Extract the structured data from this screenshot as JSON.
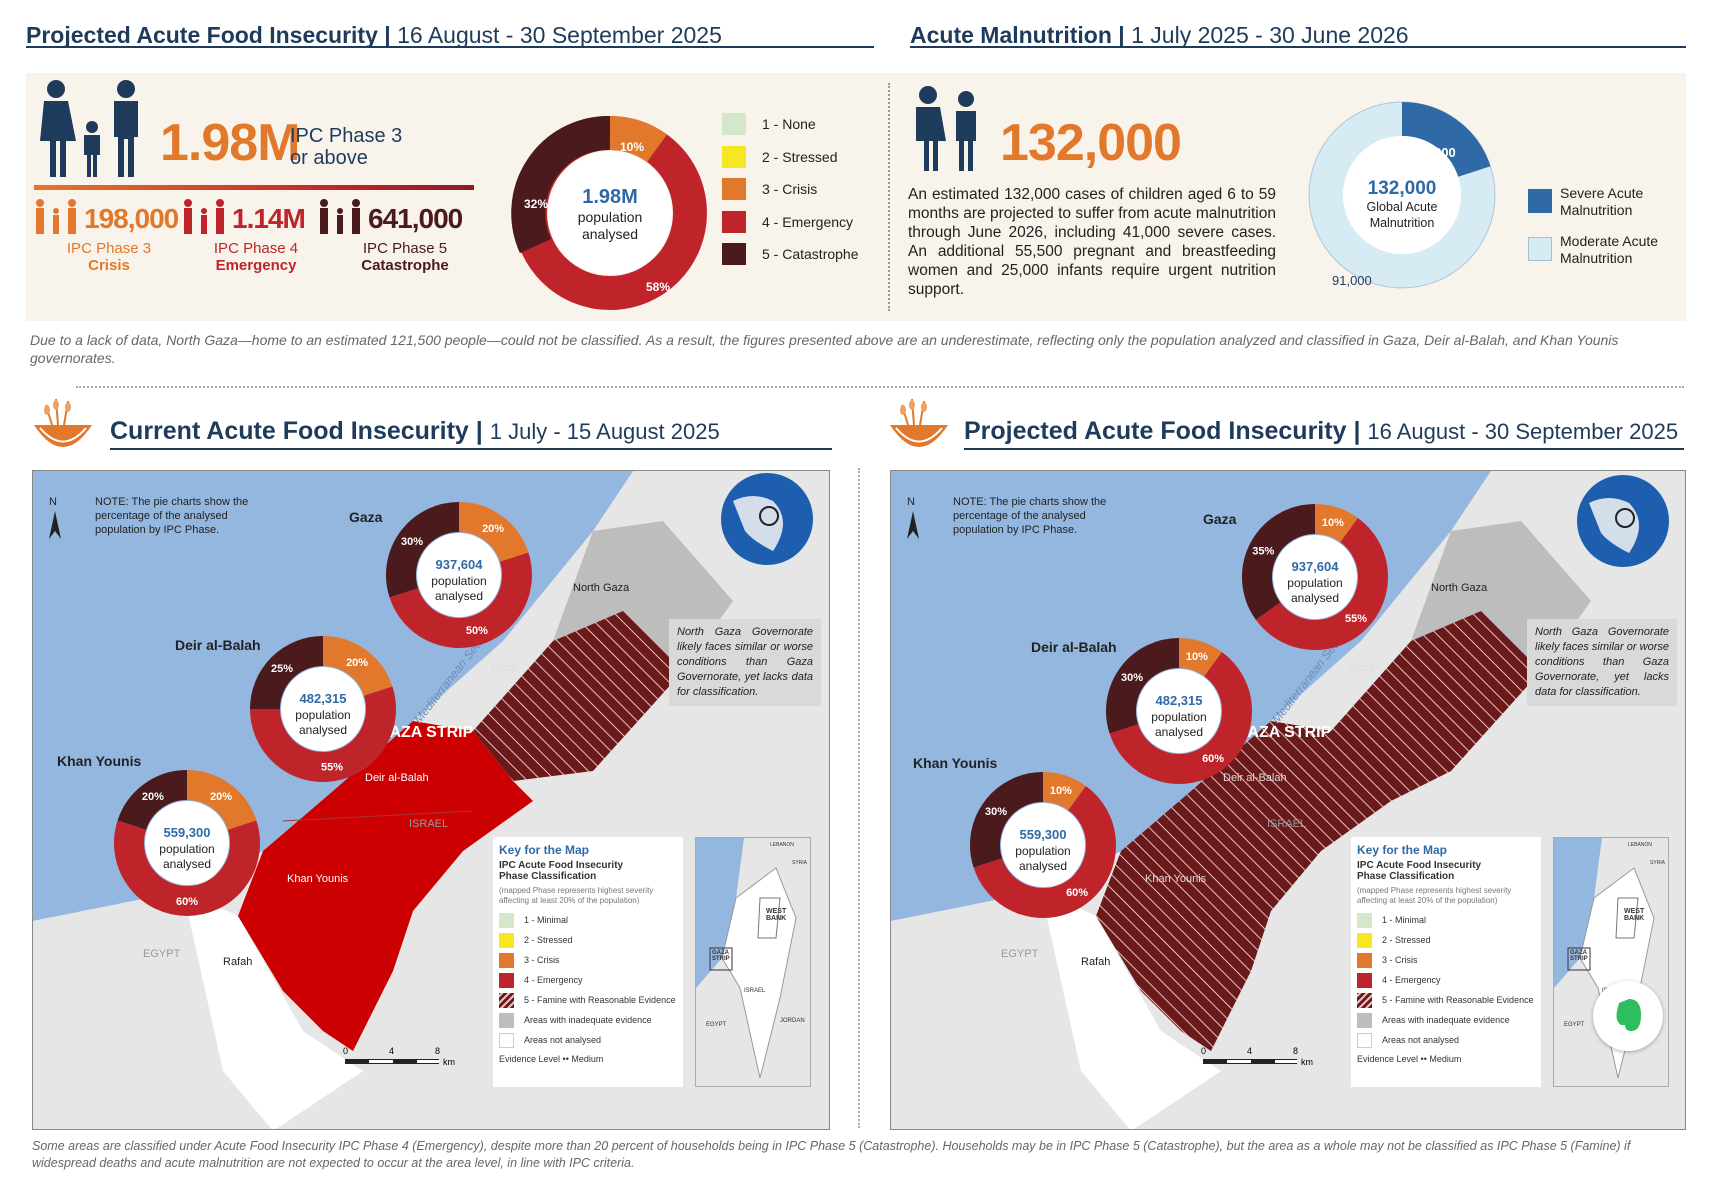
{
  "top_left_header": {
    "title": "Projected Acute Food Insecurity",
    "sep": "|",
    "period": "16 August - 30 September 2025"
  },
  "top_right_header": {
    "title": "Acute Malnutrition",
    "sep": "|",
    "period": "1 July 2025 - 30 June 2026"
  },
  "food": {
    "total": "1.98M",
    "total_label_1": "IPC Phase 3",
    "total_label_2": "or above",
    "phases": [
      {
        "value": "198,000",
        "label": "IPC Phase 3",
        "name": "Crisis",
        "color": "#e2782b"
      },
      {
        "value": "1.14M",
        "label": "IPC Phase 4",
        "name": "Emergency",
        "color": "#c0242b"
      },
      {
        "value": "641,000",
        "label": "IPC Phase 5",
        "name": "Catastrophe",
        "color": "#4a1a1c"
      }
    ],
    "donut": {
      "center_value": "1.98M",
      "center_l1": "population",
      "center_l2": "analysed",
      "pct_crisis": "10%",
      "pct_emergency": "58%",
      "pct_catastrophe": "32%"
    },
    "legend": [
      {
        "label": "1 - None",
        "color": "#d3e8c9"
      },
      {
        "label": "2 - Stressed",
        "color": "#f6e623"
      },
      {
        "label": "3 - Crisis",
        "color": "#e2782b"
      },
      {
        "label": "4 - Emergency",
        "color": "#c0242b"
      },
      {
        "label": "5 - Catastrophe",
        "color": "#4a1a1c"
      }
    ]
  },
  "malnutrition": {
    "total": "132,000",
    "text": "An estimated 132,000 cases of children aged 6 to 59 months are projected to suffer from acute malnutrition through June 2026, including 41,000 severe cases. An additional 55,500 pregnant and breastfeeding women and 25,000 infants require urgent nutrition support.",
    "donut": {
      "center_value": "132,000",
      "center_l1": "Global Acute",
      "center_l2": "Malnutrition",
      "severe_label": "41,000",
      "moderate_label": "91,000",
      "severe_value": 41000,
      "moderate_value": 91000
    },
    "legend": [
      {
        "l1": "Severe Acute",
        "l2": "Malnutrition",
        "color": "#2f6aa6"
      },
      {
        "l1": "Moderate Acute",
        "l2": "Malnutrition",
        "color": "#d6ebf3"
      }
    ]
  },
  "data_note": "Due to a lack of data, North Gaza—home to an estimated 121,500 people—could not be classified. As a result, the figures presented above are an underestimate, reflecting only the population analyzed and classified in Gaza, Deir al-Balah, and Khan Younis governorates.",
  "maps": [
    {
      "title": "Current Acute Food Insecurity",
      "sep": "|",
      "period": "1 July - 15 August 2025",
      "note": "NOTE: The pie charts show the percentage of the analysed population by IPC Phase.",
      "pies": [
        {
          "name": "Gaza",
          "pop": "937,604",
          "l1": "population",
          "l2": "analysed",
          "crisis": 20,
          "emergency": 50,
          "catastrophe": 30,
          "pc": "20%",
          "pe": "50%",
          "pk": "30%"
        },
        {
          "name": "Deir al-Balah",
          "pop": "482,315",
          "l1": "population",
          "l2": "analysed",
          "crisis": 20,
          "emergency": 55,
          "catastrophe": 25,
          "pc": "20%",
          "pe": "55%",
          "pk": "25%"
        },
        {
          "name": "Khan Younis",
          "pop": "559,300",
          "l1": "population",
          "l2": "analysed",
          "crisis": 20,
          "emergency": 60,
          "catastrophe": 20,
          "pc": "20%",
          "pe": "60%",
          "pk": "20%"
        }
      ]
    },
    {
      "title": "Projected Acute Food Insecurity",
      "sep": "|",
      "period": "16 August - 30 September 2025",
      "note": "NOTE: The pie charts show the percentage of the analysed population by IPC Phase.",
      "pies": [
        {
          "name": "Gaza",
          "pop": "937,604",
          "l1": "population",
          "l2": "analysed",
          "crisis": 10,
          "emergency": 55,
          "catastrophe": 35,
          "pc": "10%",
          "pe": "55%",
          "pk": "35%"
        },
        {
          "name": "Deir al-Balah",
          "pop": "482,315",
          "l1": "population",
          "l2": "analysed",
          "crisis": 10,
          "emergency": 60,
          "catastrophe": 30,
          "pc": "10%",
          "pe": "60%",
          "pk": "30%"
        },
        {
          "name": "Khan Younis",
          "pop": "559,300",
          "l1": "population",
          "l2": "analysed",
          "crisis": 10,
          "emergency": 60,
          "catastrophe": 30,
          "pc": "10%",
          "pe": "60%",
          "pk": "30%"
        }
      ]
    }
  ],
  "map_labels": {
    "north": "N",
    "north_gaza": "North Gaza",
    "gaza": "Gaza",
    "gaza_strip": "GAZA STRIP",
    "deir": "Deir al-Balah",
    "khan": "Khan Younis",
    "rafah": "Rafah",
    "egypt": "EGYPT",
    "israel": "ISRAEL",
    "sea": "Mediterranean Sea",
    "ng_note": "North Gaza Governorate likely faces similar or worse conditions than Gaza Governorate, yet lacks data for classification.",
    "scale": [
      "0",
      "4",
      "8",
      "km"
    ]
  },
  "key": {
    "title": "Key for the Map",
    "sub1": "IPC Acute Food Insecurity",
    "sub2": "Phase Classification",
    "desc": "(mapped Phase represents highest severity affecting at least 20% of the population)",
    "rows": [
      {
        "label": "1 - Minimal",
        "color": "#d3e8c9"
      },
      {
        "label": "2 - Stressed",
        "color": "#f6e623"
      },
      {
        "label": "3 - Crisis",
        "color": "#e2782b"
      },
      {
        "label": "4 - Emergency",
        "color": "#c0242b"
      },
      {
        "label": "5 - Famine with Reasonable Evidence",
        "color": "#6b1a1c"
      },
      {
        "label": "Areas with inadequate evidence",
        "color": "#bdbdbd"
      },
      {
        "label": "Areas not analysed",
        "color": "#ffffff"
      }
    ],
    "evidence": "Evidence Level",
    "evidence_val": "Medium"
  },
  "inset": {
    "lebanon": "LEBANON",
    "syria": "SYRIA",
    "sea": "Mediterranean Sea",
    "west_bank": "WEST BANK",
    "gaza_strip": "GAZA STRIP",
    "israel": "ISRAEL",
    "egypt": "EGYPT",
    "jordan": "JORDAN"
  },
  "footnote": "Some areas are classified under Acute Food Insecurity IPC Phase 4 (Emergency), despite more than 20 percent of households being in IPC Phase 5 (Catastrophe). Households may be in IPC Phase 5 (Catastrophe), but the area as a whole may not be classified as IPC Phase 5 (Famine) if widespread deaths and acute malnutrition are not expected to occur at the area level, in line with IPC criteria.",
  "colors": {
    "navy": "#1f3b5b",
    "orange": "#e2782b",
    "red": "#c0242b",
    "dark": "#4a1a1c",
    "sea": "#94b7e0",
    "land": "#e6e6e6"
  }
}
